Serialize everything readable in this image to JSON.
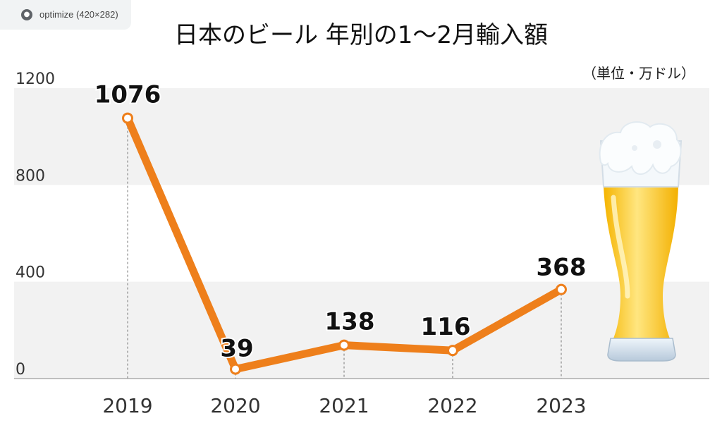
{
  "browser_tab": {
    "title": "optimize (420×282)"
  },
  "chart_data": {
    "type": "line",
    "title": "日本のビール 年別の1～2月輸入額",
    "unit": "（単位・万ドル）",
    "categories": [
      "2019",
      "2020",
      "2021",
      "2022",
      "2023"
    ],
    "values": [
      1076,
      39,
      138,
      116,
      368
    ],
    "value_labels": [
      "1076",
      "39",
      "138",
      "116",
      "368"
    ],
    "y_ticks": [
      "0",
      "400",
      "800",
      "1200"
    ],
    "ylim": [
      0,
      1200
    ],
    "line_color": "#ee7f1b",
    "band_color": "#f2f2f2",
    "grid": false,
    "legend": "none"
  }
}
